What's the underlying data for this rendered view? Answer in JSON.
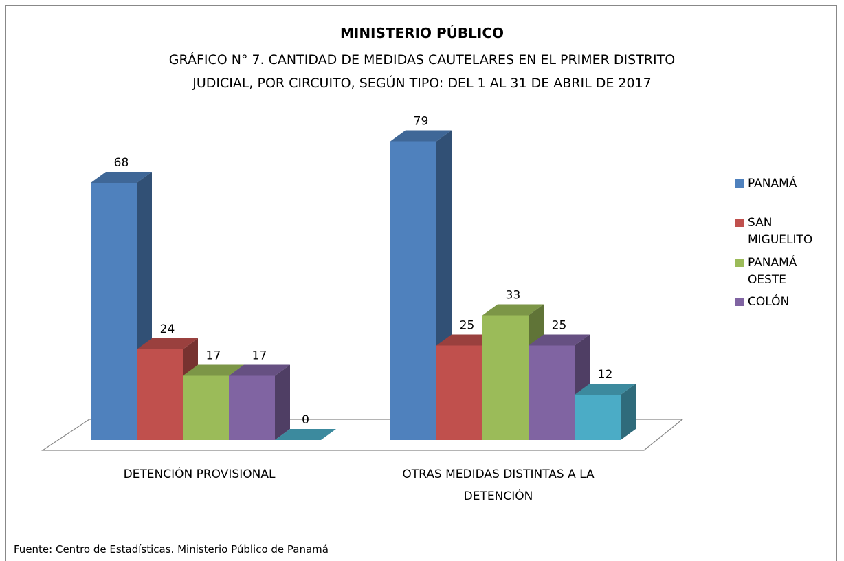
{
  "chart_data": {
    "type": "bar3d",
    "title": "MINISTERIO PÚBLICO",
    "subtitle": [
      "GRÁFICO N° 7. CANTIDAD DE MEDIDAS CAUTELARES EN EL PRIMER DISTRITO",
      "JUDICIAL, POR CIRCUITO, SEGÚN TIPO: DEL 1 AL 31 DE ABRIL DE 2017"
    ],
    "categories": [
      "DETENCIÓN PROVISIONAL",
      "OTRAS MEDIDAS DISTINTAS A LA DETENCIÓN"
    ],
    "series": [
      {
        "name": "PANAMÁ",
        "color": "#4f81bd",
        "values": [
          68,
          79
        ]
      },
      {
        "name": "SAN MIGUELITO",
        "color": "#c0504d",
        "values": [
          24,
          25
        ]
      },
      {
        "name": "PANAMÁ OESTE",
        "color": "#9bbb59",
        "values": [
          17,
          33
        ]
      },
      {
        "name": "COLÓN",
        "color": "#8064a2",
        "values": [
          17,
          25
        ]
      },
      {
        "color": "#4bacc6",
        "values": [
          0,
          12
        ]
      }
    ],
    "legend": "right",
    "source": "Fuente: Centro de Estadísticas. Ministerio Público de Panamá"
  }
}
